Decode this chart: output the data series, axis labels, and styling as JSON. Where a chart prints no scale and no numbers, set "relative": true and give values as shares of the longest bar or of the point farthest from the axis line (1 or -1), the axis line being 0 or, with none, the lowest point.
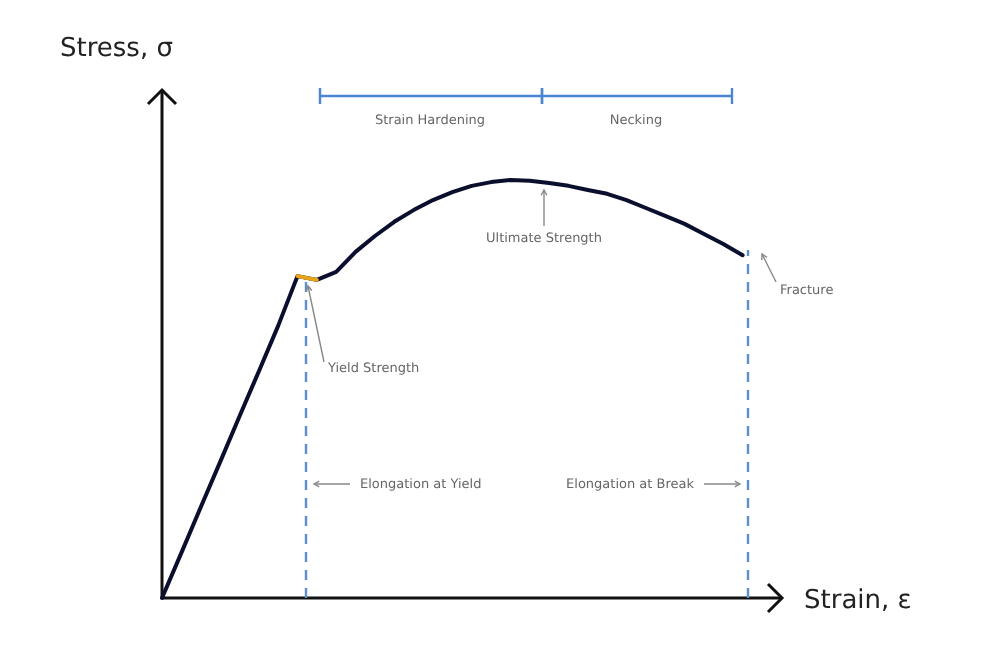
{
  "chart_data": {
    "type": "line",
    "relative": true,
    "xlabel": "Strain, ε",
    "ylabel": "Stress, σ",
    "marker": "none",
    "line_style": "solid",
    "categories": [
      null,
      null,
      null,
      null,
      null,
      null,
      null,
      null,
      null,
      null,
      null,
      null,
      null,
      null,
      null,
      null,
      null,
      null,
      null,
      null,
      null,
      null,
      null,
      null,
      null,
      null,
      null,
      null,
      null,
      null,
      null
    ],
    "series": [
      {
        "color": "#0b0f2e",
        "values": [
          0,
          0.108,
          0.217,
          0.325,
          0.434,
          0.542,
          0.651,
          0.77,
          0.761,
          0.78,
          0.828,
          0.866,
          0.9,
          0.928,
          0.952,
          0.971,
          0.986,
          0.995,
          1,
          0.998,
          0.993,
          0.986,
          0.976,
          0.967,
          0.952,
          0.933,
          0.914,
          0.895,
          0.871,
          0.847,
          0.82
        ]
      },
      {
        "color": "#e8a317",
        "values": [
          null,
          null,
          null,
          null,
          null,
          null,
          null,
          0.77,
          0.761,
          null,
          null,
          null,
          null,
          null,
          null,
          null,
          null,
          null,
          null,
          null,
          null,
          null,
          null,
          null,
          null,
          null,
          null,
          null,
          null,
          null,
          null
        ]
      }
    ],
    "annotations": [
      "Yield Strength",
      "Ultimate Strength",
      "Fracture",
      "Strain Hardening",
      "Necking",
      "Elongation at Yield",
      "Elongation at Break"
    ]
  }
}
